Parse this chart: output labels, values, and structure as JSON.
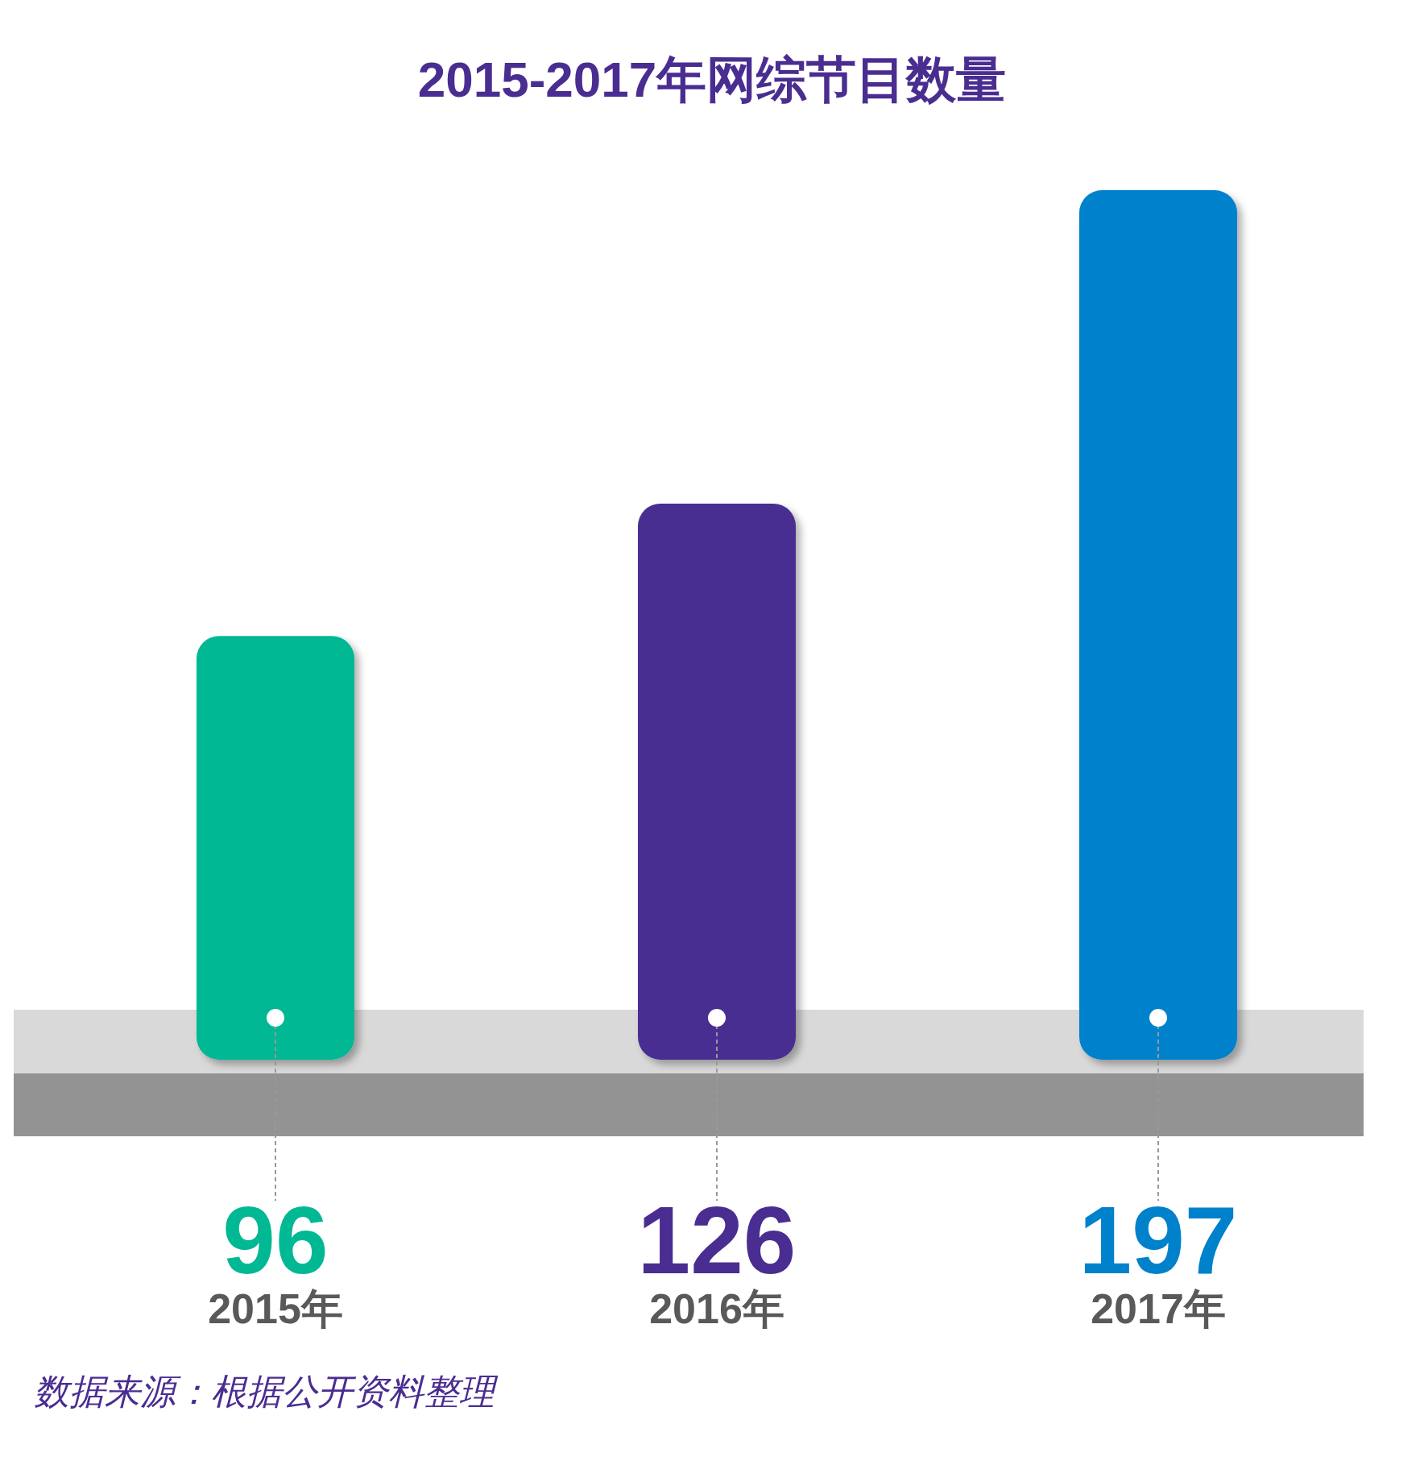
{
  "chart_data": {
    "type": "bar",
    "title": "2015-2017年网综节目数量",
    "categories": [
      "2015年",
      "2016年",
      "2017年"
    ],
    "values": [
      96,
      126,
      197
    ],
    "colors": [
      "#00b894",
      "#4a2d91",
      "#0081cc"
    ],
    "data_labels": true,
    "annotations": [
      "数据来源：根据公开资料整理"
    ]
  }
}
